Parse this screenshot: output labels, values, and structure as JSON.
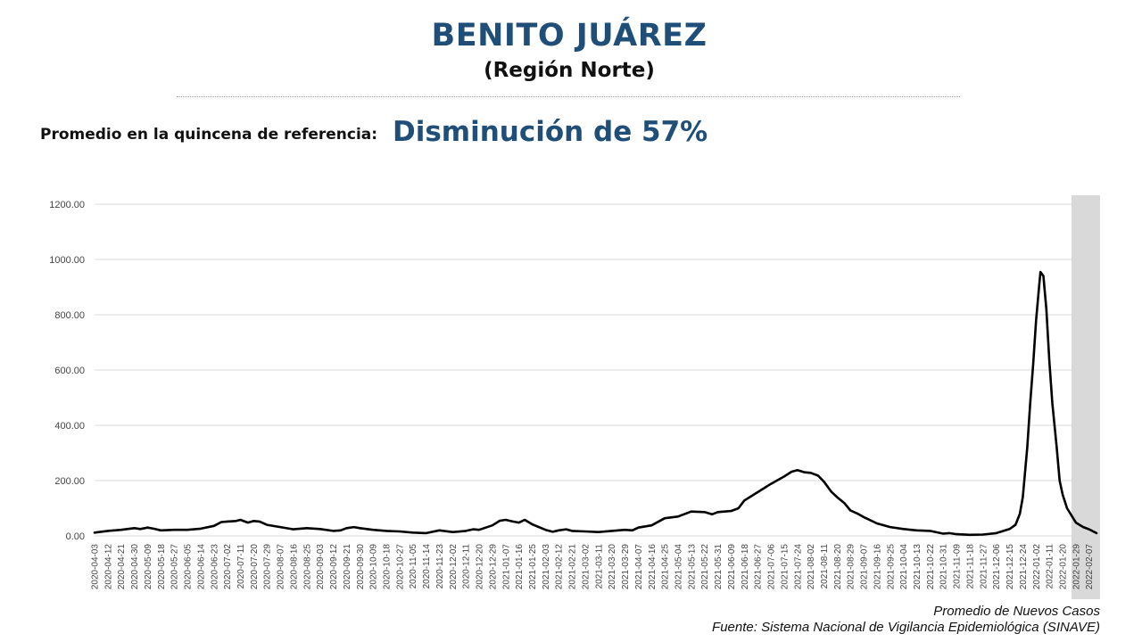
{
  "header": {
    "title": "BENITO JUÁREZ",
    "subtitle": "(Región Norte)"
  },
  "reference": {
    "label": "Promedio en la quincena de referencia:",
    "value": "Disminución de 57%"
  },
  "footer": {
    "line1": "Promedio de Nuevos Casos",
    "line2": "Fuente: Sistema Nacional de Vigilancia Epidemiológica (SINAVE)"
  },
  "colors": {
    "title": "#1f4e79",
    "line": "#000000",
    "grid": "#d9d9d9",
    "highlight_band": "#d9d9d9"
  },
  "chart_data": {
    "type": "line",
    "title": "",
    "xlabel": "",
    "ylabel": "",
    "ylim": [
      0,
      1200
    ],
    "yticks": [
      "0.00",
      "200.00",
      "400.00",
      "600.00",
      "800.00",
      "1000.00",
      "1200.00"
    ],
    "grid": "horizontal",
    "x_range": [
      "2020-04-03",
      "2022-02-12"
    ],
    "xticks": [
      "2020-04-03",
      "2020-04-12",
      "2020-04-21",
      "2020-04-30",
      "2020-05-09",
      "2020-05-18",
      "2020-05-27",
      "2020-06-05",
      "2020-06-14",
      "2020-06-23",
      "2020-07-02",
      "2020-07-11",
      "2020-07-20",
      "2020-07-29",
      "2020-08-07",
      "2020-08-16",
      "2020-08-25",
      "2020-09-03",
      "2020-09-12",
      "2020-09-21",
      "2020-09-30",
      "2020-10-09",
      "2020-10-18",
      "2020-10-27",
      "2020-11-05",
      "2020-11-14",
      "2020-11-23",
      "2020-12-02",
      "2020-12-11",
      "2020-12-20",
      "2020-12-29",
      "2021-01-07",
      "2021-01-16",
      "2021-01-25",
      "2021-02-03",
      "2021-02-12",
      "2021-02-21",
      "2021-03-02",
      "2021-03-11",
      "2021-03-20",
      "2021-03-29",
      "2021-04-07",
      "2021-04-16",
      "2021-04-25",
      "2021-05-04",
      "2021-05-13",
      "2021-05-22",
      "2021-05-31",
      "2021-06-09",
      "2021-06-18",
      "2021-06-27",
      "2021-07-06",
      "2021-07-15",
      "2021-07-24",
      "2021-08-02",
      "2021-08-11",
      "2021-08-20",
      "2021-08-29",
      "2021-09-07",
      "2021-09-16",
      "2021-09-25",
      "2021-10-04",
      "2021-10-13",
      "2021-10-22",
      "2021-10-31",
      "2021-11-09",
      "2021-11-18",
      "2021-11-27",
      "2021-12-06",
      "2021-12-15",
      "2021-12-24",
      "2022-01-02",
      "2022-01-11",
      "2022-01-20",
      "2022-01-29",
      "2022-02-07"
    ],
    "highlight_range": [
      "2022-01-29",
      "2022-02-12"
    ],
    "series": [
      {
        "points": [
          [
            "2020-04-03",
            12
          ],
          [
            "2020-04-12",
            18
          ],
          [
            "2020-04-21",
            22
          ],
          [
            "2020-04-30",
            28
          ],
          [
            "2020-05-04",
            25
          ],
          [
            "2020-05-09",
            30
          ],
          [
            "2020-05-13",
            26
          ],
          [
            "2020-05-18",
            20
          ],
          [
            "2020-05-27",
            22
          ],
          [
            "2020-06-05",
            22
          ],
          [
            "2020-06-14",
            26
          ],
          [
            "2020-06-23",
            36
          ],
          [
            "2020-06-28",
            50
          ],
          [
            "2020-07-02",
            52
          ],
          [
            "2020-07-08",
            54
          ],
          [
            "2020-07-11",
            58
          ],
          [
            "2020-07-16",
            48
          ],
          [
            "2020-07-20",
            54
          ],
          [
            "2020-07-24",
            52
          ],
          [
            "2020-07-29",
            40
          ],
          [
            "2020-08-07",
            32
          ],
          [
            "2020-08-16",
            24
          ],
          [
            "2020-08-25",
            28
          ],
          [
            "2020-09-03",
            25
          ],
          [
            "2020-09-12",
            18
          ],
          [
            "2020-09-17",
            20
          ],
          [
            "2020-09-21",
            28
          ],
          [
            "2020-09-26",
            32
          ],
          [
            "2020-09-30",
            28
          ],
          [
            "2020-10-09",
            22
          ],
          [
            "2020-10-18",
            18
          ],
          [
            "2020-10-27",
            16
          ],
          [
            "2020-11-05",
            12
          ],
          [
            "2020-11-14",
            10
          ],
          [
            "2020-11-23",
            20
          ],
          [
            "2020-12-02",
            14
          ],
          [
            "2020-12-11",
            18
          ],
          [
            "2020-12-16",
            24
          ],
          [
            "2020-12-20",
            22
          ],
          [
            "2020-12-29",
            38
          ],
          [
            "2021-01-03",
            55
          ],
          [
            "2021-01-07",
            58
          ],
          [
            "2021-01-12",
            52
          ],
          [
            "2021-01-16",
            48
          ],
          [
            "2021-01-20",
            58
          ],
          [
            "2021-01-25",
            42
          ],
          [
            "2021-02-03",
            22
          ],
          [
            "2021-02-08",
            15
          ],
          [
            "2021-02-12",
            20
          ],
          [
            "2021-02-17",
            24
          ],
          [
            "2021-02-21",
            18
          ],
          [
            "2021-03-02",
            16
          ],
          [
            "2021-03-11",
            14
          ],
          [
            "2021-03-20",
            18
          ],
          [
            "2021-03-29",
            22
          ],
          [
            "2021-04-03",
            20
          ],
          [
            "2021-04-07",
            30
          ],
          [
            "2021-04-16",
            38
          ],
          [
            "2021-04-25",
            64
          ],
          [
            "2021-05-01",
            68
          ],
          [
            "2021-05-04",
            70
          ],
          [
            "2021-05-13",
            88
          ],
          [
            "2021-05-22",
            86
          ],
          [
            "2021-05-27",
            78
          ],
          [
            "2021-05-31",
            86
          ],
          [
            "2021-06-09",
            90
          ],
          [
            "2021-06-14",
            100
          ],
          [
            "2021-06-18",
            128
          ],
          [
            "2021-06-27",
            158
          ],
          [
            "2021-07-06",
            188
          ],
          [
            "2021-07-15",
            215
          ],
          [
            "2021-07-20",
            232
          ],
          [
            "2021-07-24",
            238
          ],
          [
            "2021-07-29",
            230
          ],
          [
            "2021-08-02",
            228
          ],
          [
            "2021-08-07",
            218
          ],
          [
            "2021-08-11",
            196
          ],
          [
            "2021-08-16",
            160
          ],
          [
            "2021-08-20",
            140
          ],
          [
            "2021-08-25",
            118
          ],
          [
            "2021-08-29",
            92
          ],
          [
            "2021-09-03",
            80
          ],
          [
            "2021-09-07",
            68
          ],
          [
            "2021-09-16",
            45
          ],
          [
            "2021-09-25",
            32
          ],
          [
            "2021-10-04",
            25
          ],
          [
            "2021-10-13",
            20
          ],
          [
            "2021-10-22",
            18
          ],
          [
            "2021-10-31",
            8
          ],
          [
            "2021-11-04",
            10
          ],
          [
            "2021-11-09",
            6
          ],
          [
            "2021-11-18",
            4
          ],
          [
            "2021-11-27",
            5
          ],
          [
            "2021-12-06",
            10
          ],
          [
            "2021-12-15",
            25
          ],
          [
            "2021-12-19",
            40
          ],
          [
            "2021-12-22",
            80
          ],
          [
            "2021-12-24",
            140
          ],
          [
            "2021-12-27",
            320
          ],
          [
            "2021-12-29",
            480
          ],
          [
            "2021-12-31",
            620
          ],
          [
            "2022-01-02",
            780
          ],
          [
            "2022-01-04",
            900
          ],
          [
            "2022-01-05",
            955
          ],
          [
            "2022-01-07",
            940
          ],
          [
            "2022-01-09",
            820
          ],
          [
            "2022-01-11",
            630
          ],
          [
            "2022-01-13",
            480
          ],
          [
            "2022-01-16",
            320
          ],
          [
            "2022-01-18",
            200
          ],
          [
            "2022-01-20",
            150
          ],
          [
            "2022-01-23",
            100
          ],
          [
            "2022-01-29",
            48
          ],
          [
            "2022-02-03",
            32
          ],
          [
            "2022-02-07",
            24
          ],
          [
            "2022-02-12",
            10
          ]
        ]
      }
    ]
  }
}
